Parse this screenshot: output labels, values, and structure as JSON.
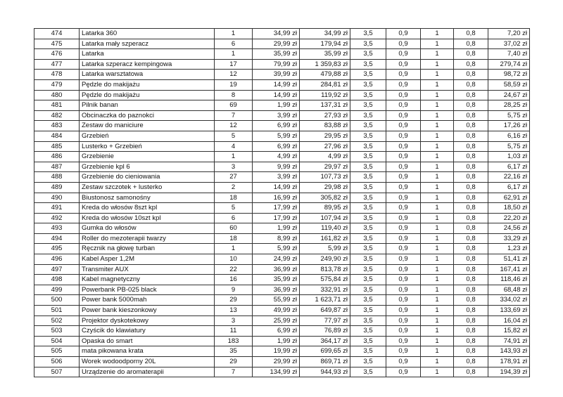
{
  "table": {
    "rows": [
      [
        "474",
        "Latarka 360",
        "1",
        "34,99 zł",
        "34,99 zł",
        "3,5",
        "0,9",
        "1",
        "0,8",
        "7,20 zł"
      ],
      [
        "475",
        "Latarka mały szperacz",
        "6",
        "29,99 zł",
        "179,94 zł",
        "3,5",
        "0,9",
        "1",
        "0,8",
        "37,02 zł"
      ],
      [
        "476",
        "Latarka",
        "1",
        "35,99 zł",
        "35,99 zł",
        "3,5",
        "0,9",
        "1",
        "0,8",
        "7,40 zł"
      ],
      [
        "477",
        "Latarka szperacz kempingowa",
        "17",
        "79,99 zł",
        "1 359,83 zł",
        "3,5",
        "0,9",
        "1",
        "0,8",
        "279,74 zł"
      ],
      [
        "478",
        "Latarka warsztatowa",
        "12",
        "39,99 zł",
        "479,88 zł",
        "3,5",
        "0,9",
        "1",
        "0,8",
        "98,72 zł"
      ],
      [
        "479",
        "Pędzle do makijażu",
        "19",
        "14,99 zł",
        "284,81 zł",
        "3,5",
        "0,9",
        "1",
        "0,8",
        "58,59 zł"
      ],
      [
        "480",
        "Pędzle do makijażu",
        "8",
        "14,99 zł",
        "119,92 zł",
        "3,5",
        "0,9",
        "1",
        "0,8",
        "24,67 zł"
      ],
      [
        "481",
        "Pilnik banan",
        "69",
        "1,99 zł",
        "137,31 zł",
        "3,5",
        "0,9",
        "1",
        "0,8",
        "28,25 zł"
      ],
      [
        "482",
        "Obcinaczka do paznokci",
        "7",
        "3,99 zł",
        "27,93 zł",
        "3,5",
        "0,9",
        "1",
        "0,8",
        "5,75 zł"
      ],
      [
        "483",
        "Zestaw do maniciure",
        "12",
        "6,99 zł",
        "83,88 zł",
        "3,5",
        "0,9",
        "1",
        "0,8",
        "17,26 zł"
      ],
      [
        "484",
        "Grzebień",
        "5",
        "5,99 zł",
        "29,95 zł",
        "3,5",
        "0,9",
        "1",
        "0,8",
        "6,16 zł"
      ],
      [
        "485",
        "Lusterko + Grzebień",
        "4",
        "6,99 zł",
        "27,96 zł",
        "3,5",
        "0,9",
        "1",
        "0,8",
        "5,75 zł"
      ],
      [
        "486",
        "Grzebienie",
        "1",
        "4,99 zł",
        "4,99 zł",
        "3,5",
        "0,9",
        "1",
        "0,8",
        "1,03 zł"
      ],
      [
        "487",
        "Grzebienie  kpl 6",
        "3",
        "9,99 zł",
        "29,97 zł",
        "3,5",
        "0,9",
        "1",
        "0,8",
        "6,17 zł"
      ],
      [
        "488",
        "Grzebienie do cieniowania",
        "27",
        "3,99 zł",
        "107,73 zł",
        "3,5",
        "0,9",
        "1",
        "0,8",
        "22,16 zł"
      ],
      [
        "489",
        "Zestaw szczotek + lusterko",
        "2",
        "14,99 zł",
        "29,98 zł",
        "3,5",
        "0,9",
        "1",
        "0,8",
        "6,17 zł"
      ],
      [
        "490",
        "Biustonosz samonośny",
        "18",
        "16,99 zł",
        "305,82 zł",
        "3,5",
        "0,9",
        "1",
        "0,8",
        "62,91 zł"
      ],
      [
        "491",
        "Kreda do włosów 8szt kpl",
        "5",
        "17,99 zł",
        "89,95 zł",
        "3,5",
        "0,9",
        "1",
        "0,8",
        "18,50 zł"
      ],
      [
        "492",
        "Kreda do włosów 10szt kpl",
        "6",
        "17,99 zł",
        "107,94 zł",
        "3,5",
        "0,9",
        "1",
        "0,8",
        "22,20 zł"
      ],
      [
        "493",
        "Gumka do włosów",
        "60",
        "1,99 zł",
        "119,40 zł",
        "3,5",
        "0,9",
        "1",
        "0,8",
        "24,56 zł"
      ],
      [
        "494",
        "Roller do mezoterapii twarzy",
        "18",
        "8,99 zł",
        "161,82 zł",
        "3,5",
        "0,9",
        "1",
        "0,8",
        "33,29 zł"
      ],
      [
        "495",
        "Ręcznik na głowę turban",
        "1",
        "5,99 zł",
        "5,99 zł",
        "3,5",
        "0,9",
        "1",
        "0,8",
        "1,23 zł"
      ],
      [
        "496",
        "Kabel Asper 1,2M",
        "10",
        "24,99 zł",
        "249,90 zł",
        "3,5",
        "0,9",
        "1",
        "0,8",
        "51,41 zł"
      ],
      [
        "497",
        "Transmiter AUX",
        "22",
        "36,99 zł",
        "813,78 zł",
        "3,5",
        "0,9",
        "1",
        "0,8",
        "167,41 zł"
      ],
      [
        "498",
        "Kabel magnetyczny",
        "16",
        "35,99 zł",
        "575,84 zł",
        "3,5",
        "0,9",
        "1",
        "0,8",
        "118,46 zł"
      ],
      [
        "499",
        "Powerbank PB-025 black",
        "9",
        "36,99 zł",
        "332,91 zł",
        "3,5",
        "0,9",
        "1",
        "0,8",
        "68,48 zł"
      ],
      [
        "500",
        "Power bank 5000mah",
        "29",
        "55,99 zł",
        "1 623,71 zł",
        "3,5",
        "0,9",
        "1",
        "0,8",
        "334,02 zł"
      ],
      [
        "501",
        "Power bank kieszonkowy",
        "13",
        "49,99 zł",
        "649,87 zł",
        "3,5",
        "0,9",
        "1",
        "0,8",
        "133,69 zł"
      ],
      [
        "502",
        "Projektor dyskotekowy",
        "3",
        "25,99 zł",
        "77,97 zł",
        "3,5",
        "0,9",
        "1",
        "0,8",
        "16,04 zł"
      ],
      [
        "503",
        "Czyścik do klawiatury",
        "11",
        "6,99 zł",
        "76,89 zł",
        "3,5",
        "0,9",
        "1",
        "0,8",
        "15,82 zł"
      ],
      [
        "504",
        "Opaska do smart",
        "183",
        "1,99 zł",
        "364,17 zł",
        "3,5",
        "0,9",
        "1",
        "0,8",
        "74,91 zł"
      ],
      [
        "505",
        "mata pikowana krata",
        "35",
        "19,99 zł",
        "699,65 zł",
        "3,5",
        "0,9",
        "1",
        "0,8",
        "143,93 zł"
      ],
      [
        "506",
        "Worek wodoodporny 20L",
        "29",
        "29,99 zł",
        "869,71 zł",
        "3,5",
        "0,9",
        "1",
        "0,8",
        "178,91 zł"
      ],
      [
        "507",
        "Urządzenie do aromaterapii",
        "7",
        "134,99 zł",
        "944,93 zł",
        "3,5",
        "0,9",
        "1",
        "0,8",
        "194,39 zł"
      ]
    ]
  }
}
